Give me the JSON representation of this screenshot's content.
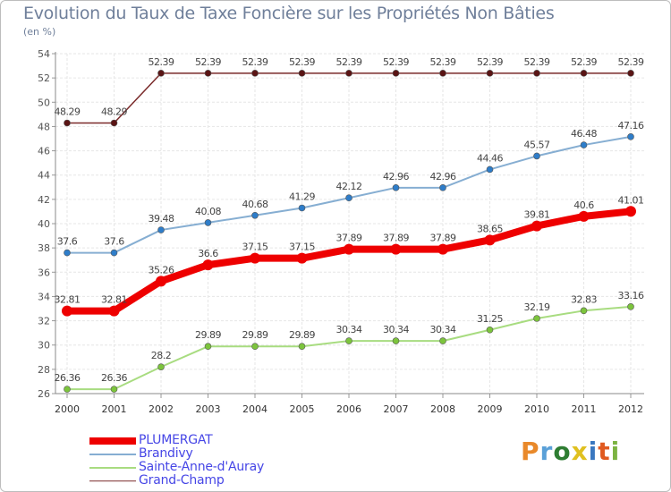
{
  "title": "Evolution du Taux de Taxe Foncière sur les Propriétés Non Bâties",
  "subtitle": "(en %)",
  "logo": {
    "text": "Proxiti",
    "colors": [
      "#e9892a",
      "#5aa0d8",
      "#2e7d32",
      "#e0c020",
      "#3a78c0",
      "#e05a20",
      "#7cb342"
    ]
  },
  "chart_data": {
    "type": "line",
    "title": "Evolution du Taux de Taxe Foncière sur les Propriétés Non Bâties",
    "ylabel": "(en %)",
    "xlabel": "",
    "x": [
      "2000",
      "2001",
      "2002",
      "2003",
      "2004",
      "2005",
      "2006",
      "2007",
      "2008",
      "2009",
      "2010",
      "2011",
      "2012"
    ],
    "ylim": [
      26,
      54
    ],
    "yticks": [
      26,
      28,
      30,
      32,
      34,
      36,
      38,
      40,
      42,
      44,
      46,
      48,
      50,
      52,
      54
    ],
    "grid": true,
    "legend": "bottom-left",
    "series": [
      {
        "name": "PLUMERGAT",
        "color": "#ee0000",
        "marker": "#ee0000",
        "width": 8,
        "radius": 6,
        "values": [
          32.81,
          32.81,
          35.26,
          36.6,
          37.15,
          37.15,
          37.89,
          37.89,
          37.89,
          38.65,
          39.81,
          40.6,
          41.01
        ],
        "labels": [
          "32.81",
          "32.81",
          "35.26",
          "36.6",
          "37.15",
          "37.15",
          "37.89",
          "37.89",
          "37.89",
          "38.65",
          "39.81",
          "40.6",
          "41.01"
        ]
      },
      {
        "name": "Brandivy",
        "color": "#86aed2",
        "marker": "#2e7dc9",
        "width": 2,
        "radius": 3.5,
        "values": [
          37.6,
          37.6,
          39.48,
          40.08,
          40.68,
          41.29,
          42.12,
          42.96,
          42.96,
          44.46,
          45.57,
          46.48,
          47.16
        ],
        "labels": [
          "37.6",
          "37.6",
          "39.48",
          "40.08",
          "40.68",
          "41.29",
          "42.12",
          "42.96",
          "42.96",
          "44.46",
          "45.57",
          "46.48",
          "47.16"
        ]
      },
      {
        "name": "Sainte-Anne-d'Auray",
        "color": "#a8dc80",
        "marker": "#7cc43c",
        "width": 2,
        "radius": 3.5,
        "values": [
          26.36,
          26.36,
          28.2,
          29.89,
          29.89,
          29.89,
          30.34,
          30.34,
          30.34,
          31.25,
          32.19,
          32.83,
          33.16
        ],
        "labels": [
          "26.36",
          "26.36",
          "28.2",
          "29.89",
          "29.89",
          "29.89",
          "30.34",
          "30.34",
          "30.34",
          "31.25",
          "32.19",
          "32.83",
          "33.16"
        ]
      },
      {
        "name": "Grand-Champ",
        "color": "#7a2a2a",
        "marker": "#5a1414",
        "width": 1.5,
        "radius": 3.5,
        "values": [
          48.29,
          48.29,
          52.39,
          52.39,
          52.39,
          52.39,
          52.39,
          52.39,
          52.39,
          52.39,
          52.39,
          52.39,
          52.39
        ],
        "labels": [
          "48.29",
          "48.29",
          "52.39",
          "52.39",
          "52.39",
          "52.39",
          "52.39",
          "52.39",
          "52.39",
          "52.39",
          "52.39",
          "52.39",
          "52.39"
        ]
      }
    ]
  }
}
